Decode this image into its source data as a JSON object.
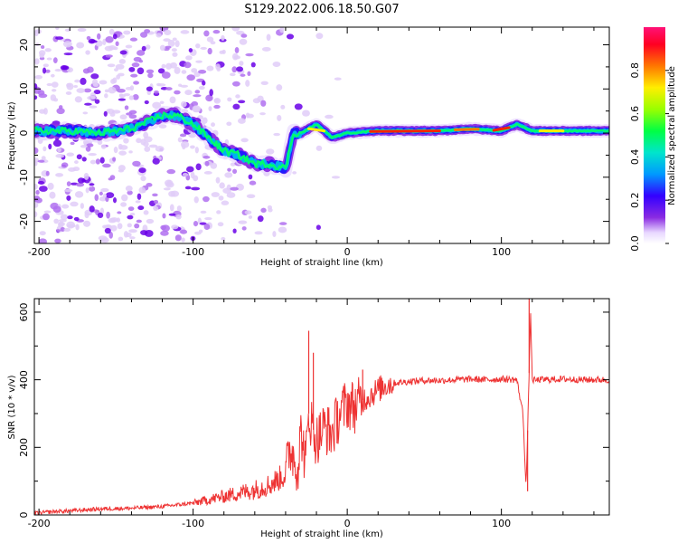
{
  "title": "S129.2022.006.18.50.G07",
  "chart_data": [
    {
      "type": "heatmap",
      "name": "spectrogram",
      "xlabel": "Height of straight line (km)",
      "ylabel": "Frequency (Hz)",
      "xlim": [
        -203,
        170
      ],
      "ylim": [
        -25,
        24
      ],
      "xticks": [
        -200,
        -100,
        0,
        100
      ],
      "yticks": [
        -20,
        -10,
        0,
        10,
        20
      ],
      "colorbar": {
        "label": "Normalized spectral amplitude",
        "range": [
          0,
          1
        ],
        "ticks": [
          "0.0",
          "0.2",
          "0.4",
          "0.6",
          "0.8"
        ]
      },
      "ridge": {
        "x": [
          -200,
          -180,
          -160,
          -140,
          -120,
          -110,
          -100,
          -90,
          -80,
          -70,
          -60,
          -50,
          -40,
          -35,
          -30,
          -20,
          -10,
          0,
          20,
          60,
          80,
          100,
          110,
          120,
          170
        ],
        "y": [
          0.5,
          0.5,
          0,
          1,
          4,
          4,
          2,
          -1,
          -4,
          -5,
          -7,
          -7,
          -8,
          0,
          0,
          2,
          -1,
          0,
          0.5,
          0.5,
          1,
          0.5,
          2,
          0.5,
          0.5
        ]
      }
    },
    {
      "type": "line",
      "name": "snr",
      "xlabel": "Height of straight line (km)",
      "ylabel": "SNR (10 * v/v)",
      "xlim": [
        -203,
        170
      ],
      "ylim": [
        0,
        640
      ],
      "xticks": [
        -200,
        -100,
        0,
        100
      ],
      "yticks": [
        0,
        200,
        400,
        600
      ],
      "color": "#ee3333",
      "x": [
        -203,
        -190,
        -180,
        -160,
        -140,
        -120,
        -110,
        -100,
        -90,
        -80,
        -70,
        -60,
        -50,
        -40,
        -37,
        -32,
        -30,
        -27,
        -25,
        -20,
        -15,
        -10,
        -5,
        0,
        5,
        10,
        15,
        20,
        25,
        30,
        40,
        50,
        60,
        70,
        80,
        90,
        100,
        110,
        114,
        116,
        118,
        119,
        120,
        122,
        125,
        140,
        155,
        170
      ],
      "y": [
        5,
        10,
        12,
        18,
        20,
        25,
        30,
        35,
        45,
        55,
        65,
        75,
        90,
        120,
        200,
        140,
        250,
        150,
        300,
        220,
        260,
        240,
        300,
        330,
        320,
        340,
        355,
        370,
        385,
        390,
        395,
        398,
        398,
        400,
        402,
        400,
        402,
        400,
        300,
        80,
        420,
        600,
        400,
        398,
        400,
        402,
        400,
        400
      ],
      "spikes": [
        {
          "x": -25,
          "y": 545
        },
        {
          "x": -22,
          "y": 480
        },
        {
          "x": 10,
          "y": 430
        },
        {
          "x": 118,
          "y": 640
        },
        {
          "x": 117,
          "y": 70
        }
      ]
    }
  ]
}
